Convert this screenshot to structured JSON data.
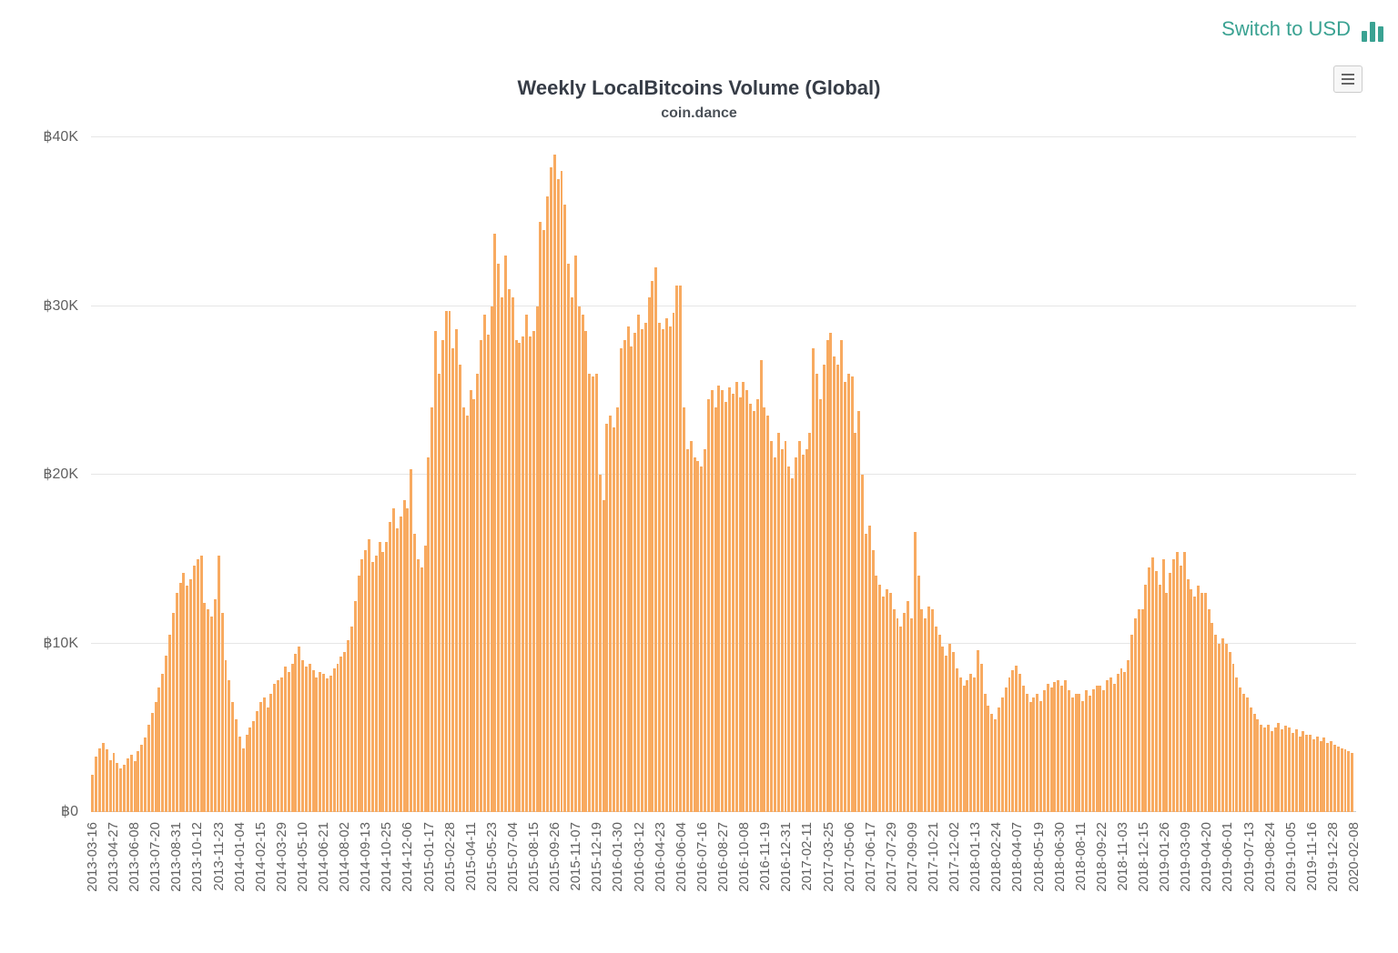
{
  "header": {
    "switch_currency_label": "Switch to USD"
  },
  "colors": {
    "bar": "#f8aa60",
    "accent": "#3aa292",
    "grid": "#e6e6e6",
    "axis_line": "#cccccc",
    "axis_text": "#606060",
    "title_text": "#373d47",
    "subtitle_text": "#4b5158"
  },
  "chart_data": {
    "type": "bar",
    "title": "Weekly LocalBitcoins Volume (Global)",
    "subtitle": "coin.dance",
    "currency_symbol": "฿",
    "values_unit": "thousand BTC per week",
    "ylim": [
      0,
      40
    ],
    "yticks": [
      "฿0",
      "฿10K",
      "฿20K",
      "฿30K",
      "฿40K"
    ],
    "grid": true,
    "legend": "none",
    "x_unit": "week",
    "x_tick_every": 6,
    "x_tick_labels": [
      "2013-03-16",
      "2013-04-27",
      "2013-06-08",
      "2013-07-20",
      "2013-08-31",
      "2013-10-12",
      "2013-11-23",
      "2014-01-04",
      "2014-02-15",
      "2014-03-29",
      "2014-05-10",
      "2014-06-21",
      "2014-08-02",
      "2014-09-13",
      "2014-10-25",
      "2014-12-06",
      "2015-01-17",
      "2015-02-28",
      "2015-04-11",
      "2015-05-23",
      "2015-07-04",
      "2015-08-15",
      "2015-09-26",
      "2015-11-07",
      "2015-12-19",
      "2016-01-30",
      "2016-03-12",
      "2016-04-23",
      "2016-06-04",
      "2016-07-16",
      "2016-08-27",
      "2016-10-08",
      "2016-11-19",
      "2016-12-31",
      "2017-02-11",
      "2017-03-25",
      "2017-05-06",
      "2017-06-17",
      "2017-07-29",
      "2017-09-09",
      "2017-10-21",
      "2017-12-02",
      "2018-01-13",
      "2018-02-24",
      "2018-04-07",
      "2018-05-19",
      "2018-06-30",
      "2018-08-11",
      "2018-09-22",
      "2018-11-03",
      "2018-12-15",
      "2019-01-26",
      "2019-03-09",
      "2019-04-20",
      "2019-06-01",
      "2019-07-13",
      "2019-08-24",
      "2019-10-05",
      "2019-11-16",
      "2019-12-28",
      "2020-02-08"
    ],
    "values": [
      2.2,
      3.3,
      3.8,
      4.1,
      3.7,
      3.1,
      3.5,
      2.9,
      2.6,
      2.8,
      3.2,
      3.4,
      3.0,
      3.6,
      4.0,
      4.4,
      5.2,
      5.9,
      6.5,
      7.4,
      8.2,
      9.3,
      10.5,
      11.8,
      13.0,
      13.6,
      14.2,
      13.4,
      13.8,
      14.6,
      15.0,
      15.2,
      12.4,
      12.0,
      11.6,
      12.6,
      15.2,
      11.8,
      9.0,
      7.8,
      6.5,
      5.5,
      4.5,
      3.8,
      4.6,
      5.0,
      5.4,
      6.0,
      6.5,
      6.8,
      6.2,
      7.0,
      7.6,
      7.8,
      8.0,
      8.6,
      8.3,
      8.8,
      9.4,
      9.8,
      9.0,
      8.6,
      8.8,
      8.4,
      8.0,
      8.3,
      8.2,
      7.9,
      8.1,
      8.5,
      8.8,
      9.2,
      9.5,
      10.2,
      11.0,
      12.5,
      14.0,
      15.0,
      15.5,
      16.2,
      14.8,
      15.2,
      16.0,
      15.4,
      16.0,
      17.2,
      18.0,
      16.8,
      17.5,
      18.5,
      18.0,
      20.3,
      16.5,
      15.0,
      14.5,
      15.8,
      21.0,
      24.0,
      28.5,
      26.0,
      28.0,
      29.7,
      29.7,
      27.5,
      28.6,
      26.5,
      24.0,
      23.5,
      25.0,
      24.5,
      26.0,
      28.0,
      29.5,
      28.3,
      30.0,
      34.3,
      32.5,
      30.5,
      33.0,
      31.0,
      30.5,
      28.0,
      27.8,
      28.2,
      29.5,
      28.2,
      28.5,
      30.0,
      35.0,
      34.5,
      36.5,
      38.2,
      39.0,
      37.5,
      38.0,
      36.0,
      32.5,
      30.5,
      33.0,
      30.0,
      29.5,
      28.5,
      26.0,
      25.8,
      26.0,
      20.0,
      18.5,
      23.0,
      23.5,
      22.8,
      24.0,
      27.5,
      28.0,
      28.8,
      27.6,
      28.4,
      29.5,
      28.6,
      29.0,
      30.5,
      31.5,
      32.3,
      29.0,
      28.6,
      29.3,
      28.8,
      29.6,
      31.2,
      31.2,
      24.0,
      21.5,
      22.0,
      21.0,
      20.8,
      20.5,
      21.5,
      24.5,
      25.0,
      24.0,
      25.3,
      25.0,
      24.3,
      25.2,
      24.8,
      25.5,
      24.6,
      25.5,
      25.0,
      24.2,
      23.8,
      24.5,
      26.8,
      24.0,
      23.5,
      22.0,
      21.0,
      22.5,
      21.5,
      22.0,
      20.5,
      19.8,
      21.0,
      22.0,
      21.2,
      21.5,
      22.5,
      27.5,
      26.0,
      24.5,
      26.5,
      28.0,
      28.4,
      27.0,
      26.5,
      28.0,
      25.5,
      26.0,
      25.8,
      22.5,
      23.8,
      20.0,
      16.5,
      17.0,
      15.5,
      14.0,
      13.5,
      12.8,
      13.2,
      13.0,
      12.0,
      11.5,
      11.0,
      11.8,
      12.5,
      11.5,
      16.6,
      14.0,
      12.0,
      11.5,
      12.2,
      12.0,
      11.0,
      10.5,
      9.8,
      9.3,
      10.0,
      9.5,
      8.5,
      8.0,
      7.5,
      7.8,
      8.2,
      8.0,
      9.6,
      8.8,
      7.0,
      6.3,
      5.8,
      5.5,
      6.2,
      6.8,
      7.4,
      8.0,
      8.4,
      8.7,
      8.2,
      7.5,
      7.0,
      6.5,
      6.8,
      7.0,
      6.6,
      7.2,
      7.6,
      7.4,
      7.7,
      7.8,
      7.5,
      7.8,
      7.2,
      6.8,
      7.0,
      7.0,
      6.6,
      7.2,
      6.9,
      7.3,
      7.5,
      7.5,
      7.2,
      7.8,
      8.0,
      7.6,
      8.2,
      8.5,
      8.3,
      9.0,
      10.5,
      11.5,
      12.0,
      12.0,
      13.5,
      14.5,
      15.1,
      14.3,
      13.5,
      15.0,
      13.0,
      14.2,
      15.0,
      15.4,
      14.6,
      15.4,
      13.8,
      13.2,
      12.8,
      13.4,
      13.0,
      13.0,
      12.0,
      11.2,
      10.5,
      10.0,
      10.3,
      10.0,
      9.5,
      8.8,
      8.0,
      7.4,
      7.0,
      6.8,
      6.2,
      5.8,
      5.5,
      5.2,
      5.0,
      5.2,
      4.8,
      5.0,
      5.3,
      4.9,
      5.1,
      5.0,
      4.7,
      4.9,
      4.5,
      4.8,
      4.6,
      4.6,
      4.3,
      4.5,
      4.2,
      4.4,
      4.1,
      4.2,
      4.0,
      3.9,
      3.8,
      3.7,
      3.6,
      3.5
    ]
  }
}
